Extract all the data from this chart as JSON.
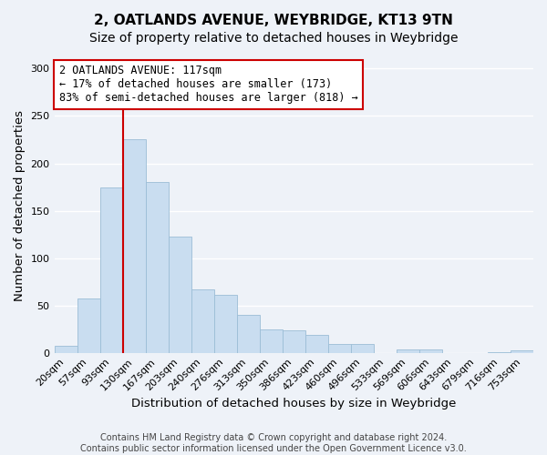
{
  "title": "2, OATLANDS AVENUE, WEYBRIDGE, KT13 9TN",
  "subtitle": "Size of property relative to detached houses in Weybridge",
  "xlabel": "Distribution of detached houses by size in Weybridge",
  "ylabel": "Number of detached properties",
  "footer_line1": "Contains HM Land Registry data © Crown copyright and database right 2024.",
  "footer_line2": "Contains public sector information licensed under the Open Government Licence v3.0.",
  "bar_labels": [
    "20sqm",
    "57sqm",
    "93sqm",
    "130sqm",
    "167sqm",
    "203sqm",
    "240sqm",
    "276sqm",
    "313sqm",
    "350sqm",
    "386sqm",
    "423sqm",
    "460sqm",
    "496sqm",
    "533sqm",
    "569sqm",
    "606sqm",
    "643sqm",
    "679sqm",
    "716sqm",
    "753sqm"
  ],
  "bar_values": [
    7,
    57,
    175,
    225,
    180,
    123,
    67,
    61,
    40,
    25,
    24,
    19,
    9,
    9,
    0,
    4,
    4,
    0,
    0,
    1,
    3
  ],
  "bar_color": "#c9ddf0",
  "bar_edge_color": "#9bbdd6",
  "annotation_title": "2 OATLANDS AVENUE: 117sqm",
  "annotation_line1": "← 17% of detached houses are smaller (173)",
  "annotation_line2": "83% of semi-detached houses are larger (818) →",
  "vline_bin_index": 3,
  "ylim": [
    0,
    310
  ],
  "yticks": [
    0,
    50,
    100,
    150,
    200,
    250,
    300
  ],
  "background_color": "#eef2f8",
  "grid_color": "#ffffff",
  "annotation_box_facecolor": "#ffffff",
  "annotation_box_edgecolor": "#cc0000",
  "vline_color": "#cc0000",
  "title_fontsize": 11,
  "subtitle_fontsize": 10,
  "axis_label_fontsize": 9.5,
  "tick_fontsize": 8,
  "annotation_fontsize": 8.5,
  "footer_fontsize": 7
}
